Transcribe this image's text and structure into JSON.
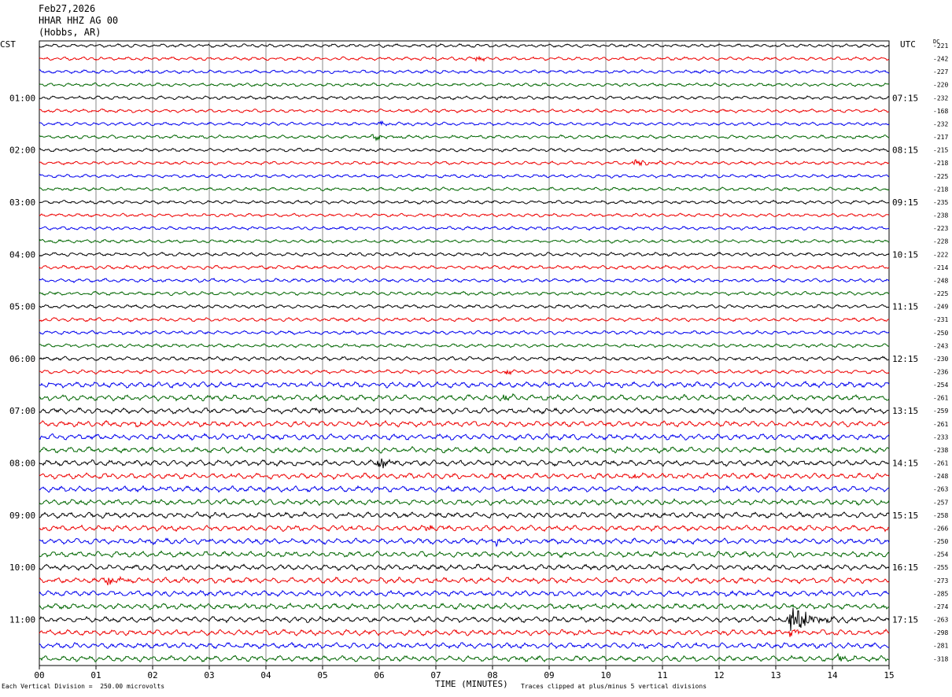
{
  "header": {
    "date": "Feb27,2026",
    "station": "HHAR HHZ AG 00",
    "location": "(Hobbs, AR)"
  },
  "left_timezone": "CST",
  "right_timezone": "UTC",
  "dc_label": "DC",
  "footer": {
    "scale_note": "Each Vertical Division =  250.00 microvolts",
    "clip_note": "Traces clipped at plus/minus 5 vertical divisions"
  },
  "colors": {
    "black": "#000000",
    "red": "#ee0000",
    "blue": "#0000ee",
    "green": "#006600",
    "grid": "#888888"
  },
  "chart_data": {
    "type": "line",
    "title": "HHAR HHZ AG 00",
    "xlabel": "TIME (MINUTES)",
    "xlim": [
      0,
      15
    ],
    "x_ticks": [
      "00",
      "01",
      "02",
      "03",
      "04",
      "05",
      "06",
      "07",
      "08",
      "09",
      "10",
      "11",
      "12",
      "13",
      "14",
      "15"
    ],
    "line_minutes": 15,
    "left_hour_labels": [
      "01:00",
      "02:00",
      "03:00",
      "04:00",
      "05:00",
      "06:00",
      "07:00",
      "08:00",
      "09:00",
      "10:00",
      "11:00"
    ],
    "right_hour_labels": [
      "07:15",
      "08:15",
      "09:15",
      "10:15",
      "11:15",
      "12:15",
      "13:15",
      "14:15",
      "15:15",
      "16:15",
      "17:15"
    ],
    "trace_color_cycle": [
      "black",
      "red",
      "blue",
      "green"
    ],
    "dc_offsets": [
      -221,
      -242,
      -227,
      -220,
      -232,
      -168,
      -232,
      -217,
      -215,
      -218,
      -225,
      -218,
      -235,
      -238,
      -223,
      -228,
      -222,
      -214,
      -248,
      -225,
      -249,
      -231,
      -250,
      -243,
      -230,
      -236,
      -254,
      -261,
      -259,
      -261,
      -233,
      -238,
      -261,
      -248,
      -263,
      -257,
      -258,
      -266,
      -250,
      -254,
      -255,
      -273,
      -285,
      -274,
      -263,
      -298,
      -281,
      -318
    ],
    "events": [
      {
        "trace": 1,
        "minute": 7.7,
        "amp": 3,
        "dur": 0.4
      },
      {
        "trace": 4,
        "minute": 8.1,
        "amp": 3,
        "dur": 0.4
      },
      {
        "trace": 6,
        "minute": 6.0,
        "amp": 3,
        "dur": 0.3
      },
      {
        "trace": 7,
        "minute": 5.9,
        "amp": 4,
        "dur": 0.8
      },
      {
        "trace": 9,
        "minute": 10.5,
        "amp": 4,
        "dur": 0.9
      },
      {
        "trace": 25,
        "minute": 8.25,
        "amp": 4,
        "dur": 0.3
      },
      {
        "trace": 27,
        "minute": 8.2,
        "amp": 4,
        "dur": 0.4
      },
      {
        "trace": 28,
        "minute": 4.9,
        "amp": 4,
        "dur": 0.3
      },
      {
        "trace": 29,
        "minute": 1.7,
        "amp": 4,
        "dur": 0.4
      },
      {
        "trace": 32,
        "minute": 6.0,
        "amp": 9,
        "dur": 0.4
      },
      {
        "trace": 33,
        "minute": 10.5,
        "amp": 3,
        "dur": 0.4
      },
      {
        "trace": 37,
        "minute": 6.8,
        "amp": 5,
        "dur": 0.4
      },
      {
        "trace": 38,
        "minute": 8.05,
        "amp": 4,
        "dur": 0.3
      },
      {
        "trace": 41,
        "minute": 1.2,
        "amp": 5,
        "dur": 0.8
      },
      {
        "trace": 42,
        "minute": 12.2,
        "amp": 3,
        "dur": 0.6
      },
      {
        "trace": 44,
        "minute": 13.25,
        "amp": 18,
        "dur": 1.2
      },
      {
        "trace": 45,
        "minute": 13.25,
        "amp": 8,
        "dur": 0.3
      },
      {
        "trace": 47,
        "minute": 14.1,
        "amp": 5,
        "dur": 0.4
      }
    ],
    "noise_level": [
      1.2,
      1.2,
      1.2,
      1.2,
      1.2,
      1.2,
      1.2,
      1.2,
      1.2,
      1.2,
      1.2,
      1.2,
      1.2,
      1.2,
      1.2,
      1.2,
      1.3,
      1.3,
      1.3,
      1.3,
      1.3,
      1.3,
      1.3,
      1.3,
      1.4,
      1.4,
      2.0,
      2.0,
      2.0,
      2.0,
      2.0,
      2.0,
      2.0,
      2.0,
      2.0,
      2.0,
      2.0,
      2.0,
      2.0,
      2.0,
      2.0,
      2.0,
      2.0,
      2.0,
      2.0,
      2.0,
      2.0,
      2.0
    ]
  }
}
